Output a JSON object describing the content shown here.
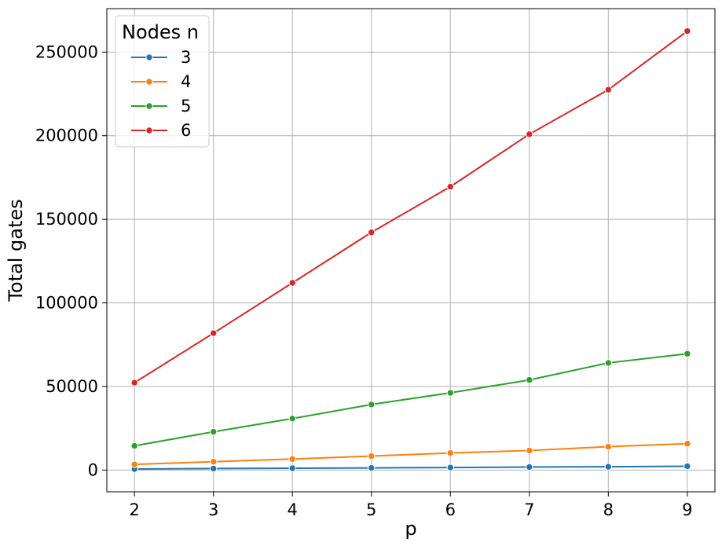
{
  "chart_data": {
    "type": "line",
    "xlabel": "p",
    "ylabel": "Total gates",
    "x": [
      2,
      3,
      4,
      5,
      6,
      7,
      8,
      9
    ],
    "xlim": [
      1.65,
      9.35
    ],
    "ylim": [
      -13000,
      276000
    ],
    "xticks": [
      2,
      3,
      4,
      5,
      6,
      7,
      8,
      9
    ],
    "yticks": [
      0,
      50000,
      100000,
      150000,
      200000,
      250000
    ],
    "grid": true,
    "legend": {
      "title": "Nodes n",
      "placement": "top-left"
    },
    "series": [
      {
        "name": "3",
        "color": "#1f77b4",
        "values": [
          600,
          900,
          1100,
          1300,
          1500,
          1800,
          2000,
          2300
        ]
      },
      {
        "name": "4",
        "color": "#ff7f0e",
        "values": [
          3400,
          5000,
          6600,
          8400,
          10200,
          11700,
          14000,
          15800
        ]
      },
      {
        "name": "5",
        "color": "#2ca02c",
        "values": [
          14500,
          22900,
          30800,
          39200,
          46200,
          53900,
          64100,
          69600
        ]
      },
      {
        "name": "6",
        "color": "#d62728",
        "values": [
          52300,
          81900,
          112000,
          142200,
          169500,
          200900,
          227500,
          262600
        ]
      }
    ]
  }
}
